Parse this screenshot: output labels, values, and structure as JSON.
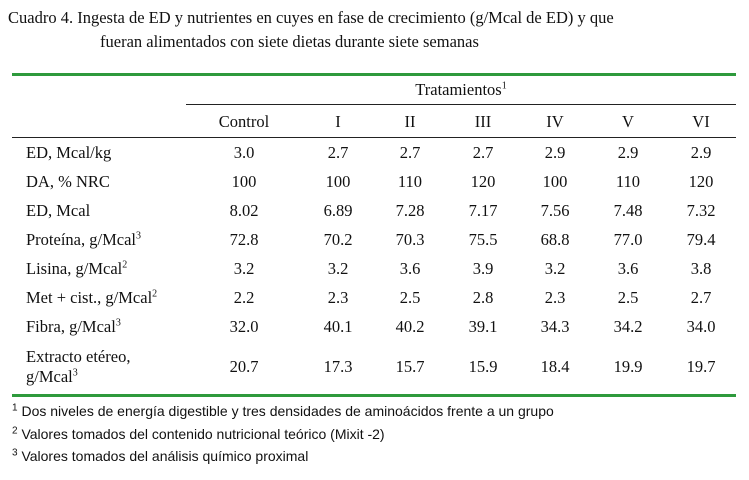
{
  "caption": {
    "line1": "Cuadro 4. Ingesta de ED y nutrientes en cuyes en fase de crecimiento (g/Mcal de ED) y que",
    "line2": "fueran alimentados con siete dietas durante siete semanas"
  },
  "table": {
    "group_header": "Tratamientos",
    "group_header_sup": "1",
    "columns": [
      "Control",
      "I",
      "II",
      "III",
      "IV",
      "V",
      "VI"
    ],
    "rows": [
      {
        "label": "ED, Mcal/kg",
        "sup": "",
        "values": [
          "3.0",
          "2.7",
          "2.7",
          "2.7",
          "2.9",
          "2.9",
          "2.9"
        ]
      },
      {
        "label": "DA, % NRC",
        "sup": "",
        "values": [
          "100",
          "100",
          "110",
          "120",
          "100",
          "110",
          "120"
        ]
      },
      {
        "label": "ED, Mcal",
        "sup": "",
        "values": [
          "8.02",
          "6.89",
          "7.28",
          "7.17",
          "7.56",
          "7.48",
          "7.32"
        ]
      },
      {
        "label": "Proteína, g/Mcal",
        "sup": "3",
        "values": [
          "72.8",
          "70.2",
          "70.3",
          "75.5",
          "68.8",
          "77.0",
          "79.4"
        ]
      },
      {
        "label": "Lisina, g/Mcal",
        "sup": "2",
        "values": [
          "3.2",
          "3.2",
          "3.6",
          "3.9",
          "3.2",
          "3.6",
          "3.8"
        ]
      },
      {
        "label": "Met + cist., g/Mcal",
        "sup": "2",
        "values": [
          "2.2",
          "2.3",
          "2.5",
          "2.8",
          "2.3",
          "2.5",
          "2.7"
        ]
      },
      {
        "label": "Fibra, g/Mcal",
        "sup": "3",
        "values": [
          "32.0",
          "40.1",
          "40.2",
          "39.1",
          "34.3",
          "34.2",
          "34.0"
        ]
      }
    ],
    "last_row": {
      "label_line1": "Extracto etéreo,",
      "label_line2": "g/Mcal",
      "sup": "3",
      "values": [
        "20.7",
        "17.3",
        "15.7",
        "15.9",
        "18.4",
        "19.9",
        "19.7"
      ]
    }
  },
  "footnotes": [
    {
      "mark": "1",
      "text": "Dos niveles de energía digestible y tres densidades de aminoácidos frente a un grupo"
    },
    {
      "mark": "2",
      "text": "Valores tomados del contenido nutricional teórico (Mixit -2)"
    },
    {
      "mark": "3",
      "text": "Valores tomados del análisis químico proximal"
    }
  ]
}
